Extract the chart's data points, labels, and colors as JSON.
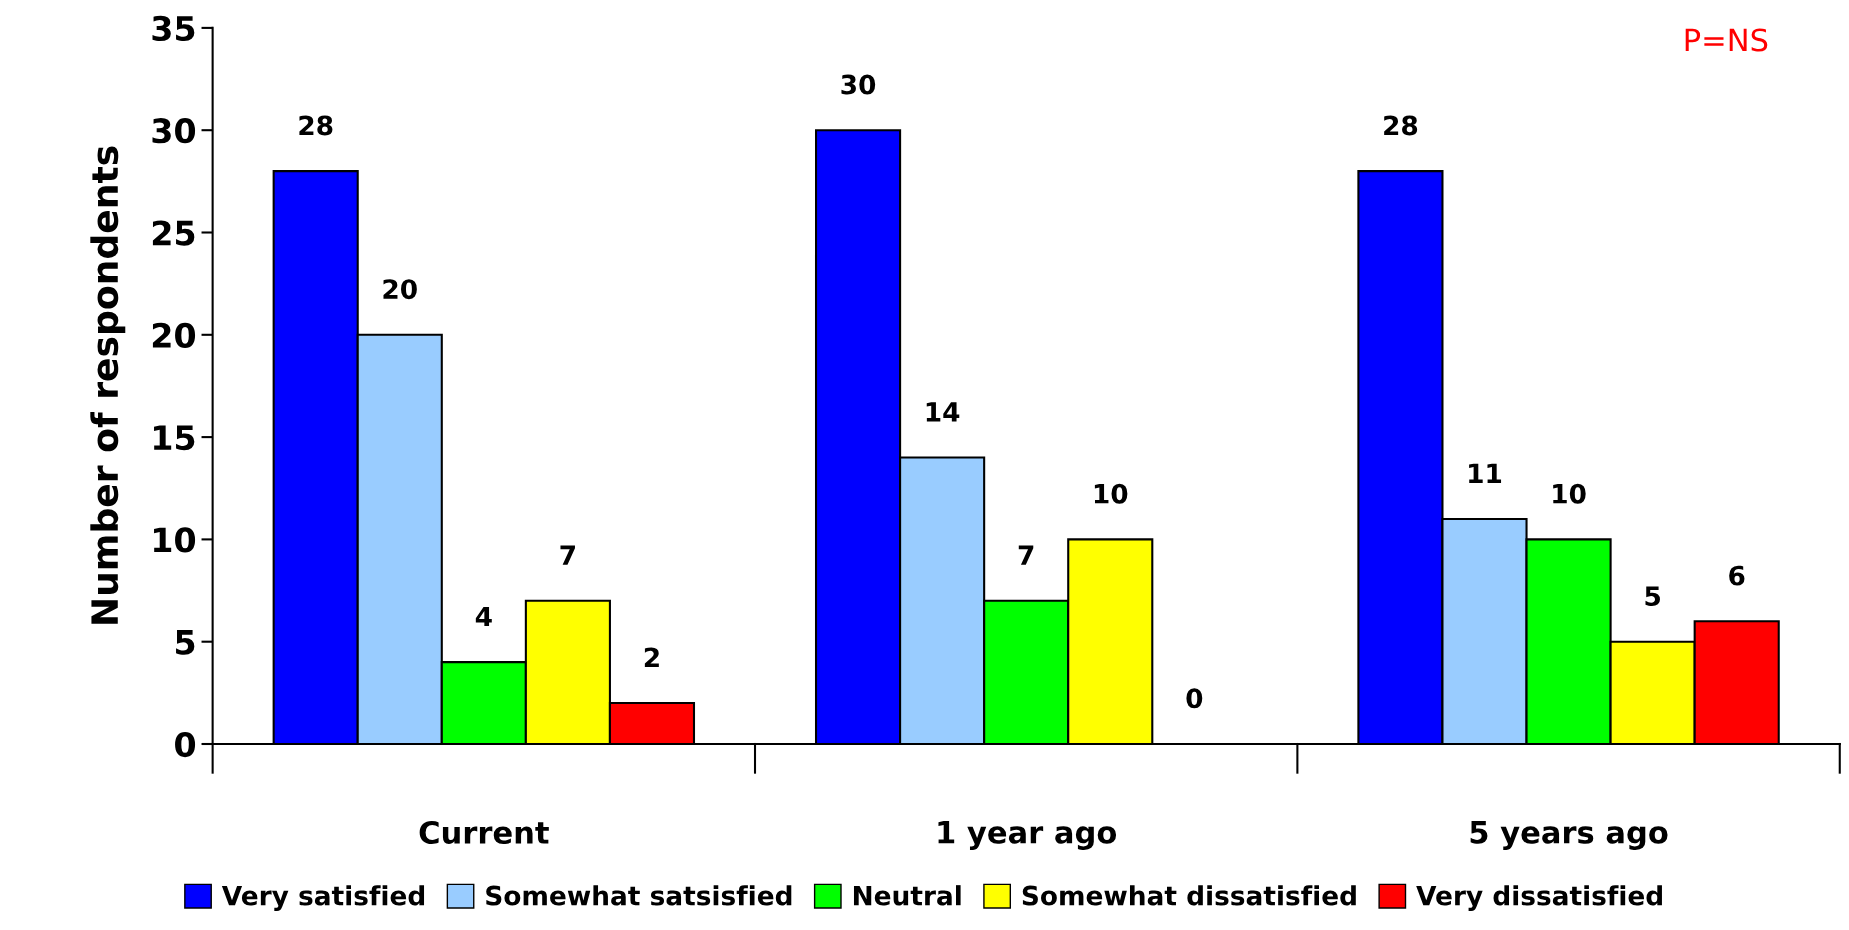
{
  "chart_data": {
    "type": "bar",
    "ylabel": "Number of respondents",
    "categories": [
      "Current",
      "1 year ago",
      "5 years ago"
    ],
    "series": [
      {
        "name": "Very satisfied",
        "color": "#0000ff",
        "values": [
          28,
          30,
          28
        ]
      },
      {
        "name": "Somewhat satsisfied",
        "color": "#99ccff",
        "values": [
          20,
          14,
          11
        ]
      },
      {
        "name": "Neutral",
        "color": "#00ff00",
        "values": [
          4,
          7,
          10
        ]
      },
      {
        "name": "Somewhat dissatisfied",
        "color": "#ffff00",
        "values": [
          7,
          10,
          5
        ]
      },
      {
        "name": "Very dissatisfied",
        "color": "#ff0000",
        "values": [
          2,
          0,
          6
        ]
      }
    ],
    "ylim": [
      0,
      35
    ],
    "yticks": [
      0,
      5,
      10,
      15,
      20,
      25,
      30,
      35
    ],
    "data_labels": true,
    "grid": false,
    "legend": "bottom",
    "annotations": [
      "P=NS"
    ]
  }
}
